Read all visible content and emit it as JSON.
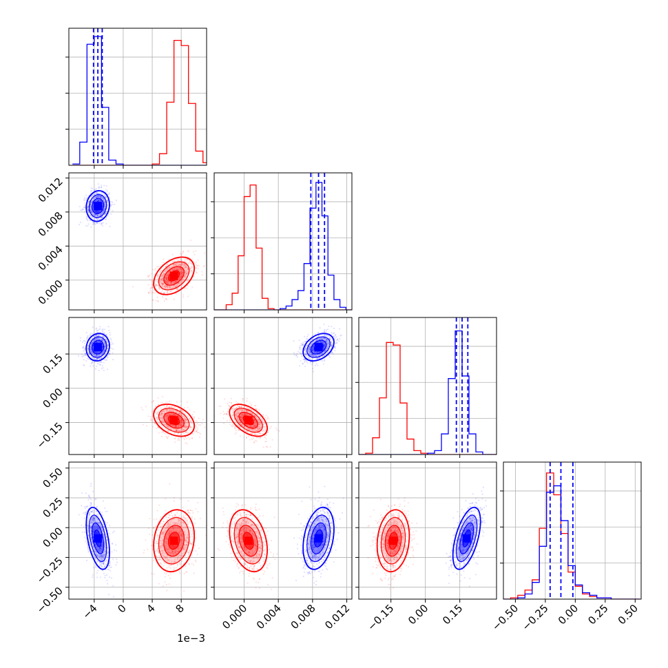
{
  "chart_data": {
    "type": "corner",
    "grid": true,
    "colors": {
      "red": "#ff0000",
      "blue": "#0000ff",
      "grid": "#b0b0b0",
      "frame": "#000000"
    },
    "series": [
      {
        "color": "red",
        "means": [
          0.007,
          0.0005,
          -0.14,
          -0.11
        ],
        "sds": [
          0.0014,
          0.0011,
          0.035,
          0.13
        ],
        "corr": {
          "0_1": 0.4,
          "0_2": -0.35,
          "0_3": 0.15,
          "1_2": -0.5,
          "1_3": -0.3,
          "2_3": 0.15
        }
      },
      {
        "color": "blue",
        "means": [
          -0.0035,
          0.0087,
          0.18,
          -0.09
        ],
        "sds": [
          0.0008,
          0.0009,
          0.03,
          0.13
        ],
        "corr": {
          "0_1": 0.1,
          "0_2": 0.1,
          "0_3": -0.45,
          "1_2": 0.35,
          "1_3": 0.3,
          "2_3": 0.55
        }
      }
    ],
    "quantile_lines": {
      "color": "blue",
      "style": "dashed",
      "values": [
        [
          -0.0041,
          -0.0035,
          -0.0029
        ],
        [
          0.0078,
          0.0087,
          0.0094
        ],
        [
          0.135,
          0.16,
          0.185
        ],
        [
          -0.21,
          -0.12,
          -0.02
        ]
      ]
    },
    "hist_1d": [
      {
        "edges": [
          -0.007,
          -0.006,
          -0.005,
          -0.004,
          -0.003,
          -0.002,
          -0.001,
          0.0,
          0.001,
          0.002,
          0.003,
          0.004,
          0.005,
          0.006,
          0.007,
          0.008,
          0.009,
          0.01,
          0.011,
          0.012
        ],
        "red": [
          0,
          0,
          0,
          0,
          0,
          0,
          0,
          0,
          0,
          0,
          0,
          0.01,
          0.09,
          0.49,
          0.97,
          0.93,
          0.48,
          0.11,
          0.02
        ],
        "blue": [
          0.01,
          0.18,
          0.94,
          1.0,
          0.45,
          0.04,
          0.01,
          0,
          0,
          0,
          0,
          0,
          0,
          0,
          0,
          0,
          0,
          0,
          0
        ]
      },
      {
        "edges": [
          -0.0035,
          -0.0028,
          -0.0021,
          -0.0014,
          -0.0007,
          0.0,
          0.0007,
          0.0014,
          0.0021,
          0.0028,
          0.0035,
          0.0042,
          0.0049,
          0.0056,
          0.0063,
          0.007,
          0.0077,
          0.0084,
          0.0091,
          0.0098,
          0.0105,
          0.0112,
          0.0119,
          0.0126
        ],
        "red": [
          0,
          0,
          0.04,
          0.13,
          0.42,
          0.88,
          0.97,
          0.48,
          0.09,
          0.01,
          0,
          0,
          0,
          0,
          0,
          0,
          0,
          0,
          0,
          0,
          0,
          0,
          0
        ],
        "blue": [
          0,
          0,
          0,
          0,
          0,
          0,
          0,
          0,
          0,
          0,
          0,
          0.01,
          0.03,
          0.08,
          0.15,
          0.36,
          0.79,
          0.99,
          0.73,
          0.27,
          0.08,
          0.02,
          0
        ]
      },
      {
        "edges": [
          -0.29,
          -0.26,
          -0.23,
          -0.2,
          -0.17,
          -0.14,
          -0.11,
          -0.08,
          -0.05,
          -0.02,
          0.01,
          0.04,
          0.07,
          0.1,
          0.13,
          0.16,
          0.19,
          0.22,
          0.25,
          0.28,
          0.31
        ],
        "red": [
          0,
          0.01,
          0.13,
          0.44,
          0.87,
          0.85,
          0.4,
          0.12,
          0.03,
          0.01,
          0,
          0,
          0,
          0,
          0,
          0,
          0,
          0,
          0,
          0
        ],
        "blue": [
          0,
          0,
          0,
          0,
          0,
          0,
          0,
          0,
          0,
          0,
          0.01,
          0.03,
          0.16,
          0.59,
          0.96,
          0.61,
          0.16,
          0.02,
          0,
          0
        ]
      },
      {
        "edges": [
          -0.6,
          -0.54,
          -0.48,
          -0.42,
          -0.36,
          -0.3,
          -0.24,
          -0.18,
          -0.12,
          -0.06,
          0.0,
          0.06,
          0.12,
          0.18,
          0.24,
          0.3,
          0.36,
          0.42,
          0.48,
          0.54
        ],
        "red": [
          0,
          0.01,
          0.03,
          0.07,
          0.15,
          0.55,
          0.98,
          0.81,
          0.51,
          0.21,
          0.1,
          0.04,
          0.02,
          0.01,
          0.01,
          0,
          0,
          0,
          0
        ],
        "blue": [
          0,
          0,
          0.01,
          0.04,
          0.13,
          0.41,
          0.83,
          0.88,
          0.61,
          0.26,
          0.11,
          0.05,
          0.03,
          0.01,
          0.01,
          0,
          0,
          0,
          0
        ]
      }
    ],
    "params": [
      {
        "range": [
          -0.0075,
          0.0115
        ],
        "ticks": [
          -0.004,
          0.0,
          0.004,
          0.008
        ],
        "tick_labels": [
          "−4",
          "0",
          "4",
          "8"
        ],
        "x_offset_label": "1e−3"
      },
      {
        "range": [
          -0.0035,
          0.0126
        ],
        "ticks": [
          0.0,
          0.004,
          0.008,
          0.012
        ],
        "tick_labels": [
          "0.000",
          "0.004",
          "0.008",
          "0.012"
        ]
      },
      {
        "range": [
          -0.29,
          0.31
        ],
        "ticks": [
          -0.15,
          0.0,
          0.15
        ],
        "tick_labels": [
          "−0.15",
          "0.00",
          "0.15"
        ]
      },
      {
        "range": [
          -0.6,
          0.55
        ],
        "ticks": [
          -0.5,
          -0.25,
          0.0,
          0.25,
          0.5
        ],
        "tick_labels": [
          "−0.50",
          "−0.25",
          "0.00",
          "0.25",
          "0.50"
        ]
      }
    ]
  }
}
